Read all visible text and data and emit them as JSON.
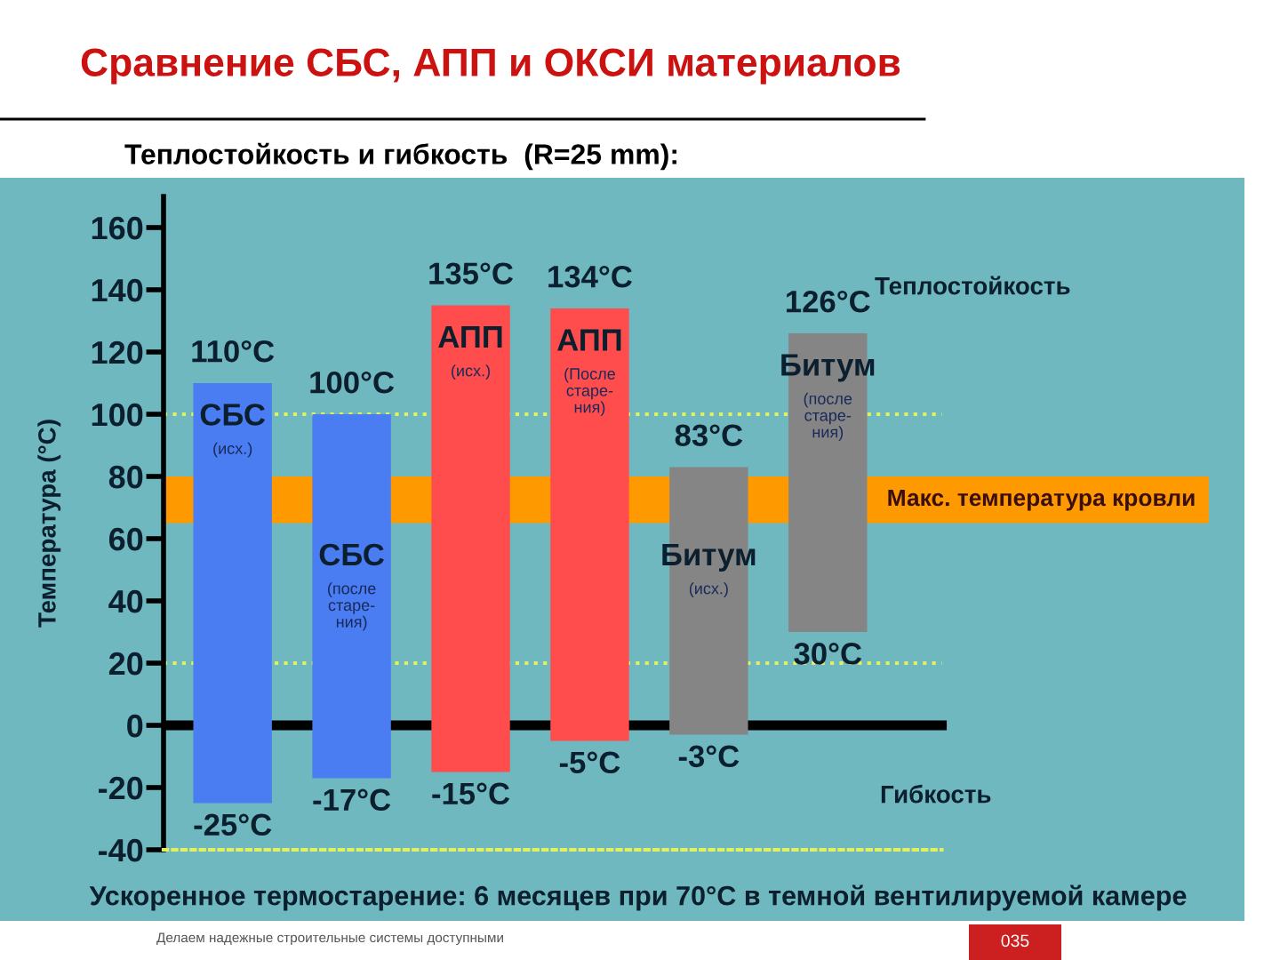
{
  "chart_data": {
    "type": "bar",
    "title": "Сравнение СБС, АПП и ОКСИ материалов",
    "subtitle": "Теплостойкость и гибкость  (R=25 mm):",
    "ylabel": "Температура (°C)",
    "categories": [
      "СБС\n(исх.)",
      "СБС\n(после\nстаре-\nния)",
      "АПП\n(исх.)",
      "АПП\n(После\nстаре-\nния)",
      "Битум\n(исх.)",
      "Битум\n(после\nстаре-\nния)"
    ],
    "base": [
      -25,
      -17,
      -15,
      -5,
      -3,
      30
    ],
    "values": [
      135,
      117,
      150,
      139,
      86,
      96
    ],
    "colors": [
      "#4a7cf2",
      "#4a7cf2",
      "#ff4d4d",
      "#ff4d4d",
      "#858585",
      "#858585"
    ],
    "ylim": [
      -40,
      170
    ],
    "yticks": [
      -40,
      -20,
      0,
      20,
      40,
      60,
      80,
      100,
      120,
      140,
      160
    ],
    "tick_labels": "y",
    "bands": [
      {
        "axis": "y",
        "from": 65,
        "to": 80,
        "label": "Макс. температура кровли",
        "color": "#ff9900"
      }
    ],
    "ref_lines": [
      {
        "axis": "y",
        "value": 0,
        "color": "#000000",
        "line_style": "solid"
      },
      {
        "axis": "y",
        "value": 100,
        "color": "#e0f060",
        "line_style": "dotted"
      },
      {
        "axis": "y",
        "value": 20,
        "color": "#e0f060",
        "line_style": "dotted"
      }
    ],
    "annotations": [
      {
        "text": "110°C",
        "x": "СБС\n(исх.)",
        "y": 110
      },
      {
        "text": "-25°C",
        "x": "СБС\n(исх.)",
        "y": -25
      },
      {
        "text": "100°C",
        "x": "СБС\n(после\nстаре-\nния)",
        "y": 100
      },
      {
        "text": "-17°C",
        "x": "СБС\n(после\nстаре-\nния)",
        "y": -17
      },
      {
        "text": "135°C",
        "x": "АПП\n(исх.)",
        "y": 135
      },
      {
        "text": "-15°C",
        "x": "АПП\n(исх.)",
        "y": -15
      },
      {
        "text": "134°C",
        "x": "АПП\n(После\nстаре-\nния)",
        "y": 134
      },
      {
        "text": "-5°C",
        "x": "АПП\n(После\nстаре-\nния)",
        "y": -5
      },
      {
        "text": "83°C",
        "x": "Битум\n(исх.)",
        "y": 83
      },
      {
        "text": "-3°C",
        "x": "Битум\n(исх.)",
        "y": -3
      },
      {
        "text": "126°C",
        "x": "Битум\n(после\nстаре-\nния)",
        "y": 126
      },
      {
        "text": "30°C",
        "x": "Битум\n(после\nстаре-\nния)",
        "y": 30
      },
      "Теплостойкость",
      "Гибкость",
      "Ускоренное термостарение: 6 месяцев при 70°C в темной вентилируемой камере",
      "Делаем надежные строительные системы доступными",
      "035"
    ]
  }
}
